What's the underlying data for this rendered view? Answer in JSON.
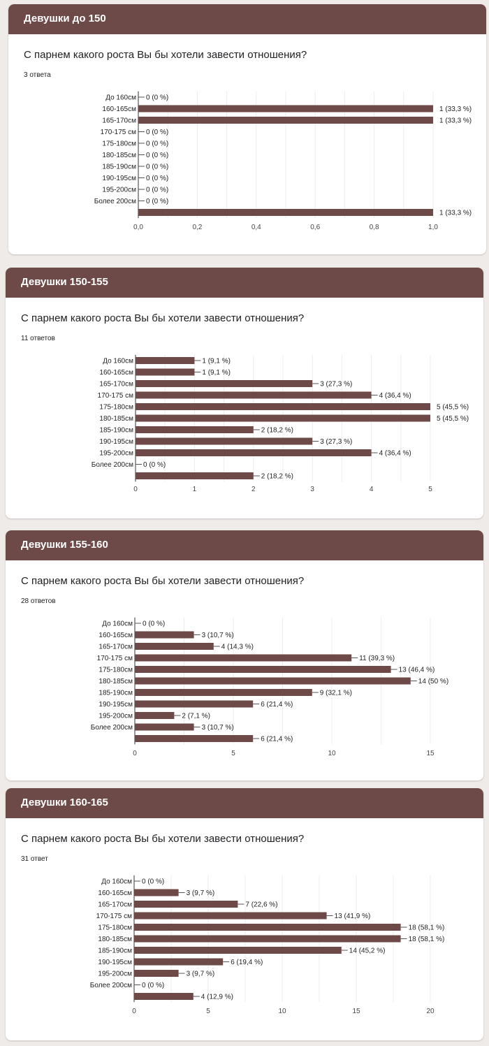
{
  "sections": [
    {
      "title": "Девушки до 150",
      "question": "С парнем какого роста Вы бы хотели завести отношения?",
      "answers": "3 ответа"
    },
    {
      "title": "Девушки 150-155",
      "question": "С парнем какого роста Вы бы хотели завести отношения?",
      "answers": "11 ответов"
    },
    {
      "title": "Девушки 155-160",
      "question": "С парнем какого роста Вы бы хотели завести отношения?",
      "answers": "28 ответов"
    },
    {
      "title": "Девушки 160-165",
      "question": "С парнем какого роста Вы бы хотели завести отношения?",
      "answers": "31 ответ"
    }
  ],
  "colors": {
    "bar": "#6d4a47",
    "header": "#6d4a47",
    "background": "#efebe9"
  },
  "chart_data": [
    {
      "type": "bar",
      "orientation": "horizontal",
      "categories": [
        "До 160см",
        "160-165см",
        "165-170см",
        "170-175 см",
        "175-180см",
        "180-185см",
        "185-190см",
        "190-195см",
        "195-200см",
        "Более 200см",
        ""
      ],
      "values": [
        0,
        1,
        1,
        0,
        0,
        0,
        0,
        0,
        0,
        0,
        1
      ],
      "labels": [
        "0 (0 %)",
        "1 (33,3 %)",
        "1 (33,3 %)",
        "0 (0 %)",
        "0 (0 %)",
        "0 (0 %)",
        "0 (0 %)",
        "0 (0 %)",
        "0 (0 %)",
        "0 (0 %)",
        "1 (33,3 %)"
      ],
      "xlim": [
        0,
        1
      ],
      "ticks": [
        0,
        0.2,
        0.4,
        0.6,
        0.8,
        1.0
      ],
      "tick_labels": [
        "0,0",
        "0,2",
        "0,4",
        "0,6",
        "0,8",
        "1,0"
      ],
      "grid": true
    },
    {
      "type": "bar",
      "orientation": "horizontal",
      "categories": [
        "До 160см",
        "160-165см",
        "165-170см",
        "170-175 см",
        "175-180см",
        "180-185см",
        "185-190см",
        "190-195см",
        "195-200см",
        "Более 200см",
        ""
      ],
      "values": [
        1,
        1,
        3,
        4,
        5,
        5,
        2,
        3,
        4,
        0,
        2
      ],
      "labels": [
        "1 (9,1 %)",
        "1 (9,1 %)",
        "3 (27,3 %)",
        "4 (36,4 %)",
        "5 (45,5 %)",
        "5 (45,5 %)",
        "2 (18,2 %)",
        "3 (27,3 %)",
        "4 (36,4 %)",
        "0 (0 %)",
        "2 (18,2 %)"
      ],
      "xlim": [
        0,
        5
      ],
      "ticks": [
        0,
        1,
        2,
        3,
        4,
        5
      ],
      "tick_labels": [
        "0",
        "1",
        "2",
        "3",
        "4",
        "5"
      ],
      "grid": true
    },
    {
      "type": "bar",
      "orientation": "horizontal",
      "categories": [
        "До 160см",
        "160-165см",
        "165-170см",
        "170-175 см",
        "175-180см",
        "180-185см",
        "185-190см",
        "190-195см",
        "195-200см",
        "Более 200см",
        ""
      ],
      "values": [
        0,
        3,
        4,
        11,
        13,
        14,
        9,
        6,
        2,
        3,
        6
      ],
      "labels": [
        "0 (0 %)",
        "3 (10,7 %)",
        "4 (14,3 %)",
        "11 (39,3 %)",
        "13 (46,4 %)",
        "14 (50 %)",
        "9 (32,1 %)",
        "6 (21,4 %)",
        "2 (7,1 %)",
        "3 (10,7 %)",
        "6 (21,4 %)"
      ],
      "xlim": [
        0,
        15
      ],
      "ticks": [
        0,
        5,
        10,
        15
      ],
      "tick_labels": [
        "0",
        "5",
        "10",
        "15"
      ],
      "grid": true
    },
    {
      "type": "bar",
      "orientation": "horizontal",
      "categories": [
        "До 160см",
        "160-165см",
        "165-170см",
        "170-175 см",
        "175-180см",
        "180-185см",
        "185-190см",
        "190-195см",
        "195-200см",
        "Более 200см",
        ""
      ],
      "values": [
        0,
        3,
        7,
        13,
        18,
        18,
        14,
        6,
        3,
        0,
        4
      ],
      "labels": [
        "0 (0 %)",
        "3 (9,7 %)",
        "7 (22,6 %)",
        "13 (41,9 %)",
        "18 (58,1 %)",
        "18 (58,1 %)",
        "14 (45,2 %)",
        "6 (19,4 %)",
        "3 (9,7 %)",
        "0 (0 %)",
        "4 (12,9 %)"
      ],
      "xlim": [
        0,
        20
      ],
      "ticks": [
        0,
        5,
        10,
        15,
        20
      ],
      "tick_labels": [
        "0",
        "5",
        "10",
        "15",
        "20"
      ],
      "grid": true
    }
  ]
}
